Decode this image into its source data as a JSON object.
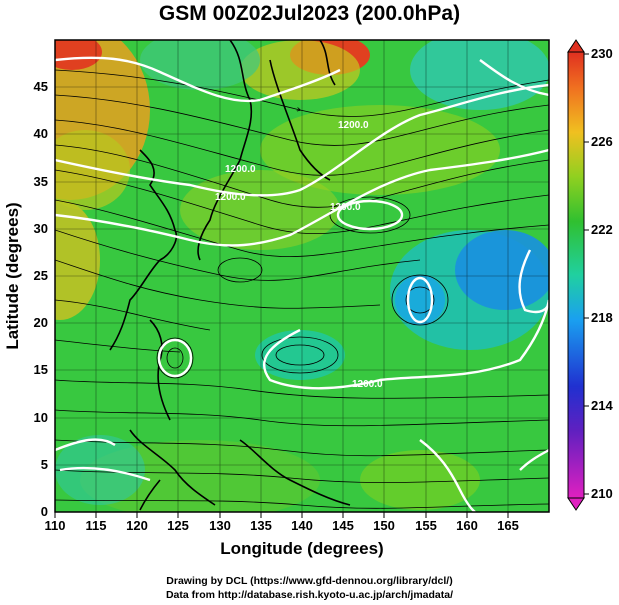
{
  "title": "GSM 00Z02Jul2023 (200.0hPa)",
  "x_axis": {
    "label": "Longitude (degrees)",
    "ticks": [
      "110",
      "115",
      "120",
      "125",
      "130",
      "135",
      "140",
      "145",
      "150",
      "155",
      "160",
      "165"
    ],
    "range": [
      110,
      170
    ]
  },
  "y_axis": {
    "label": "Latitude  (degrees)",
    "ticks": [
      "0",
      "5",
      "10",
      "15",
      "20",
      "25",
      "30",
      "35",
      "40",
      "45"
    ],
    "range": [
      0,
      50
    ]
  },
  "colorbar": {
    "ticks": [
      "210",
      "214",
      "218",
      "222",
      "226",
      "230"
    ],
    "range": [
      210,
      230
    ],
    "colors": [
      "#e020c0",
      "#2020c0",
      "#1aa0f0",
      "#20d0a0",
      "#30c030",
      "#90d020",
      "#f0c020",
      "#f07020",
      "#e03020"
    ]
  },
  "contour_labels": [
    "1200.0",
    "1200.0",
    "1200.0",
    "1200.0",
    "1200.0"
  ],
  "credits": {
    "line1": "Drawing by DCL (https://www.gfd-dennou.org/library/dcl/)",
    "line2": "Data from http://database.rish.kyoto-u.ac.jp/arch/jmadata/"
  }
}
